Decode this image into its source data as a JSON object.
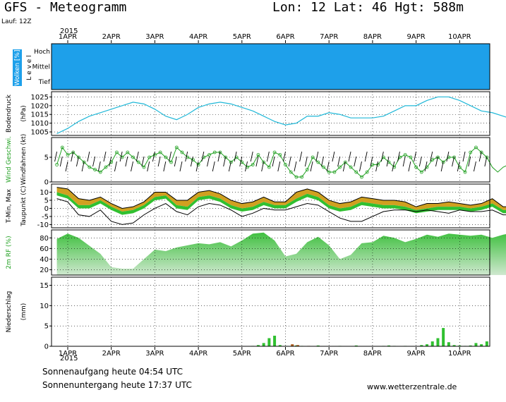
{
  "header": {
    "title": "GFS - Meteogramm",
    "location": "Lon: 12  Lat: 46  Hgt: 588m",
    "run": "Lauf: 12Z"
  },
  "footer": {
    "sunrise": "Sonnenaufgang heute 04:54 UTC",
    "sunset": "Sonnenuntergang heute 17:37 UTC",
    "site": "www.wetterzentrale.de"
  },
  "colors": {
    "cloud_sky": "#1ea0ea",
    "cloud_white": "#ffffff",
    "pressure": "#20b8d8",
    "wind_line": "#20a020",
    "wind_marker": "#20a020",
    "temp_max": "#d0a020",
    "temp_min": "#30c030",
    "dewpoint": "#000000",
    "temp_line": "#000000",
    "rh_fill": "#40c040",
    "rh_fill_light": "#cfe8cf",
    "precip_green": "#30c030",
    "precip_brown": "#b06020",
    "grid": "#888888"
  },
  "chart_data": [
    {
      "id": "clouds",
      "type": "heatmap",
      "side_label": "Wolken [%]",
      "ylabel": "L e v e l",
      "levels": [
        "Hoch",
        "Mittel",
        "Tief"
      ],
      "x_start": "2015-03-31T18:00Z",
      "x_step_hours": 6,
      "high_cloud_pct": [
        0,
        0,
        0,
        0,
        0,
        0,
        0,
        0,
        0,
        0,
        0,
        0,
        0,
        0,
        0,
        0,
        0,
        0,
        0,
        0,
        0,
        0,
        0,
        0,
        0,
        0,
        0,
        0,
        0,
        0,
        0,
        0,
        0,
        0,
        0,
        0,
        0,
        0,
        0,
        0,
        0,
        0,
        0,
        0
      ],
      "middle_cloud_pct": [
        0,
        0,
        0,
        0,
        0,
        0,
        0,
        0,
        0,
        0,
        0,
        0,
        0,
        0,
        0,
        0,
        0,
        0,
        0,
        0,
        0,
        0,
        0,
        0,
        0,
        0,
        0,
        0,
        0,
        0,
        0,
        0,
        0,
        0,
        0,
        0,
        0,
        0,
        0,
        0,
        0,
        0,
        0,
        0
      ],
      "low_cloud_pct": [
        0,
        0,
        0,
        0,
        0,
        0,
        0,
        0,
        0,
        0,
        0,
        0,
        0,
        0,
        0,
        0,
        0,
        0,
        0,
        0,
        0,
        0,
        0,
        0,
        0,
        0,
        0,
        0,
        0,
        0,
        0,
        0,
        0,
        0,
        0,
        0,
        0,
        0,
        0,
        0,
        0,
        0,
        0,
        0
      ],
      "note": ""
    },
    {
      "id": "pressure",
      "type": "line",
      "side_label": "Bodendruck",
      "ylabel": "(hPa)",
      "ylim": [
        1003,
        1028
      ],
      "yticks": [
        1005,
        1010,
        1015,
        1020,
        1025
      ],
      "x_start": "2015-03-31T18:00Z",
      "x_step_hours": 6,
      "values": [
        1004,
        1007,
        1011,
        1014,
        1016,
        1018,
        1020,
        1022,
        1021,
        1018,
        1014,
        1012,
        1015,
        1019,
        1021,
        1022,
        1021,
        1019,
        1017,
        1014,
        1011,
        1009,
        1010,
        1014,
        1014,
        1016,
        1015,
        1013,
        1013,
        1013,
        1014,
        1017,
        1020,
        1020,
        1023,
        1025,
        1025,
        1023,
        1020,
        1017,
        1016,
        1014,
        1012,
        1011,
        1010,
        1010,
        1009,
        1007,
        1007,
        1008,
        1008,
        1009,
        1009,
        1010,
        1011,
        1010,
        1011,
        1011,
        1010,
        1010,
        1010
      ]
    },
    {
      "id": "wind",
      "type": "line",
      "side_label": "Wind Geschwi.",
      "ylabel": "Windfahnen (kt)",
      "ylim": [
        0,
        9
      ],
      "yticks": [
        0,
        5
      ],
      "x_start": "2015-03-31T18:00Z",
      "x_step_hours": 3,
      "values": [
        3.5,
        7,
        5.5,
        6,
        5,
        4,
        3,
        2.5,
        2,
        3,
        4,
        6,
        5,
        6,
        5,
        4,
        3,
        5,
        5.5,
        6,
        5,
        4,
        7,
        6,
        5,
        4.5,
        3.5,
        5,
        5.5,
        6,
        6,
        5,
        4,
        5,
        4,
        3,
        3.5,
        5.5,
        4,
        3,
        6,
        5.5,
        3.5,
        2,
        1,
        1,
        2.5,
        5,
        4,
        3,
        2,
        2,
        3,
        4,
        3,
        2,
        1,
        2,
        3.5,
        3.5,
        5,
        4,
        3,
        5,
        5.5,
        5,
        3,
        2,
        3,
        4.5,
        5,
        4,
        5,
        5,
        3,
        2,
        6,
        7,
        6,
        5,
        3,
        2,
        3,
        3.5,
        3,
        3,
        4,
        3.5,
        5,
        6,
        6,
        5,
        5,
        4,
        6,
        5,
        3,
        3,
        2,
        1,
        2,
        5,
        4.5,
        4,
        4,
        4,
        3,
        2,
        5,
        6,
        5.5
      ]
    },
    {
      "id": "temperature",
      "type": "area",
      "side_label": "T-Min, Max",
      "ylabel": "Taupunkt (C)",
      "ylim": [
        -12,
        15
      ],
      "yticks": [
        -10,
        -5,
        0,
        5,
        10
      ],
      "x_start": "2015-03-31T18:00Z",
      "x_step_hours": 6,
      "series": [
        {
          "name": "Max",
          "values": [
            13,
            12,
            6,
            5,
            7,
            3,
            0,
            1,
            4,
            10,
            10,
            5,
            5,
            10,
            11,
            9,
            5,
            3,
            4,
            7,
            4,
            4,
            10,
            12,
            10,
            5,
            3,
            4,
            7,
            6,
            5,
            5,
            4,
            1,
            3,
            3,
            4,
            3,
            2,
            3,
            6,
            1,
            1,
            4,
            3
          ]
        },
        {
          "name": "Min",
          "values": [
            10,
            8,
            2,
            2,
            5,
            1,
            -2,
            -1,
            2,
            7,
            8,
            2,
            1,
            7,
            8,
            6,
            2,
            0,
            1,
            4,
            2,
            2,
            6,
            9,
            7,
            2,
            0,
            1,
            4,
            3,
            2,
            2,
            1,
            -1,
            0,
            1,
            1,
            1,
            0,
            1,
            3,
            -1,
            -1,
            1,
            1
          ]
        },
        {
          "name": "Taupunkt",
          "values": [
            6,
            4,
            -4,
            -5,
            -1,
            -8,
            -10,
            -9,
            -4,
            0,
            3,
            -2,
            -4,
            1,
            3,
            2,
            -1,
            -5,
            -3,
            0,
            -1,
            -1,
            1,
            3,
            2,
            -2,
            -6,
            -8,
            -8,
            -5,
            -2,
            -1,
            -1,
            -2,
            -1,
            -2,
            -3,
            -1,
            -2,
            -2,
            -1,
            -4,
            -4,
            -1,
            -1
          ]
        }
      ]
    },
    {
      "id": "humidity",
      "type": "area",
      "side_label": "2m RF (%)",
      "ylabel": "",
      "ylim": [
        10,
        95
      ],
      "yticks": [
        20,
        40,
        60,
        80
      ],
      "x_start": "2015-03-31T18:00Z",
      "x_step_hours": 6,
      "values": [
        78,
        88,
        80,
        65,
        50,
        25,
        22,
        22,
        40,
        58,
        55,
        62,
        66,
        70,
        68,
        72,
        64,
        75,
        88,
        90,
        75,
        45,
        50,
        72,
        82,
        66,
        40,
        48,
        70,
        72,
        84,
        80,
        72,
        78,
        86,
        82,
        88,
        86,
        84,
        86,
        80,
        86,
        90,
        86,
        84,
        86,
        88,
        85
      ]
    },
    {
      "id": "precipitation",
      "type": "bar",
      "side_label": "Niederschlag",
      "ylabel": "(mm)",
      "ylim": [
        0,
        17
      ],
      "yticks": [
        0,
        5,
        10,
        15
      ],
      "x_start": "2015-03-31T18:00Z",
      "x_step_hours": 3,
      "series": [
        {
          "name": "",
          "values": [
            0,
            0,
            0,
            0,
            0,
            0,
            0,
            0,
            0,
            0,
            0,
            0,
            0,
            0,
            0,
            0,
            0,
            0,
            0,
            0,
            0,
            0,
            0,
            0,
            0,
            0,
            0,
            0,
            0,
            0,
            0,
            0,
            0,
            0,
            0,
            0,
            0.1,
            0.3,
            0.8,
            2.0,
            2.6,
            0.3,
            0.1,
            0,
            0.2,
            0.1,
            0,
            0,
            0.2,
            0,
            0,
            0,
            0.1,
            0,
            0,
            0.2,
            0,
            0,
            0,
            0,
            0.1,
            0.2,
            0.1,
            0,
            0.1,
            0,
            0,
            0.3,
            0.5,
            1.2,
            2.0,
            4.5,
            1.0,
            0.3,
            0.2,
            0.1,
            0.2,
            0.8,
            0.5,
            1.2,
            0.8,
            0.2,
            0.1,
            0,
            0.1,
            0.3,
            0.2,
            0
          ]
        },
        {
          "name": "",
          "values": [
            0,
            0,
            0,
            0,
            0,
            0,
            0,
            0,
            0,
            0,
            0,
            0,
            0,
            0,
            0,
            0,
            0,
            0,
            0,
            0,
            0,
            0,
            0,
            0,
            0,
            0,
            0,
            0,
            0,
            0,
            0,
            0,
            0,
            0,
            0,
            0,
            0,
            0,
            0,
            0,
            0,
            0,
            0,
            0.5,
            0.3,
            0,
            0.1,
            0,
            0,
            0,
            0,
            0,
            0,
            0,
            0,
            0,
            0,
            0,
            0,
            0,
            0,
            0,
            0,
            0,
            0,
            0,
            0,
            0,
            0,
            0,
            0,
            0,
            0,
            0,
            0,
            0,
            0,
            0,
            0,
            0,
            0,
            0,
            0,
            0,
            0,
            0,
            0,
            0.5
          ]
        }
      ]
    }
  ],
  "x_axis": {
    "year": "2015",
    "days": [
      "1APR",
      "2APR",
      "3APR",
      "4APR",
      "5APR",
      "6APR",
      "7APR",
      "8APR",
      "9APR",
      "10APR"
    ]
  }
}
